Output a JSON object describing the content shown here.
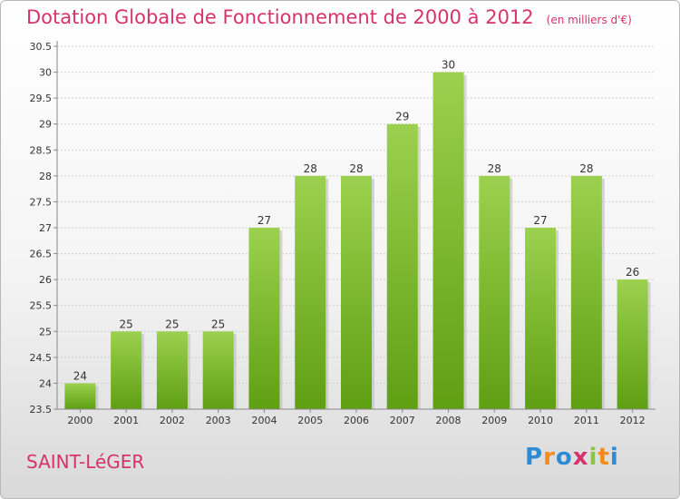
{
  "title": "Dotation Globale de Fonctionnement de 2000 à 2012",
  "subtitle": "(en milliers d'€)",
  "commune": "SAINT-LéGER",
  "logo": {
    "letters": [
      "P",
      "r",
      "o",
      "x",
      "i",
      "t",
      "i"
    ],
    "colors": [
      "#2e8bd6",
      "#f28c1e",
      "#2e8bd6",
      "#d6336c",
      "#8cc63f",
      "#f28c1e",
      "#2e8bd6"
    ]
  },
  "chart_data": {
    "type": "bar",
    "categories": [
      "2000",
      "2001",
      "2002",
      "2003",
      "2004",
      "2005",
      "2006",
      "2007",
      "2008",
      "2009",
      "2010",
      "2011",
      "2012"
    ],
    "values": [
      24,
      25,
      25,
      25,
      27,
      28,
      28,
      29,
      30,
      28,
      27,
      28,
      26
    ],
    "data_labels": [
      "24",
      "25",
      "25",
      "25",
      "27",
      "28",
      "28",
      "29",
      "30",
      "28",
      "27",
      "28",
      "26"
    ],
    "ylim": [
      23.5,
      30.5
    ],
    "yticks": [
      "23.5",
      "24",
      "24.5",
      "25",
      "25.5",
      "26",
      "26.5",
      "27",
      "27.5",
      "28",
      "28.5",
      "29",
      "29.5",
      "30",
      "30.5"
    ],
    "grid": true,
    "bar_color": "#7cbd2c",
    "title": "Dotation Globale de Fonctionnement de 2000 à 2012",
    "xlabel": "",
    "ylabel": ""
  }
}
